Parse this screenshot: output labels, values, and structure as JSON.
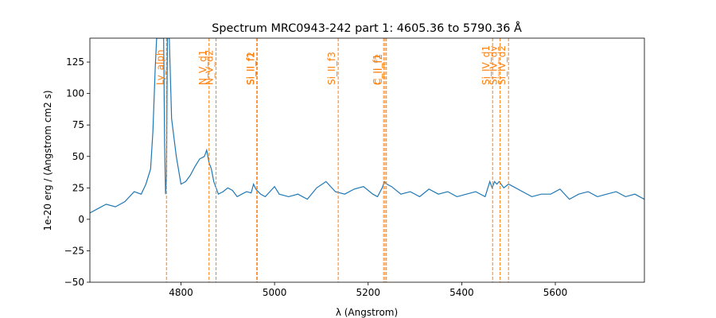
{
  "chart_data": {
    "type": "line",
    "title": "Spectrum MRC0943-242 part 1: 4605.36 to 5790.36 Å",
    "xlabel": "λ (Angstrom)",
    "ylabel": "1e-20 erg / (Angstrom cm2 s)",
    "xlim": [
      4605.36,
      5790.36
    ],
    "ylim": [
      -50,
      144
    ],
    "xticks": [
      4800,
      5000,
      5200,
      5400,
      5600
    ],
    "xtick_labels": [
      "4800",
      "5000",
      "5200",
      "5400",
      "5600"
    ],
    "yticks": [
      -50,
      -25,
      0,
      25,
      50,
      75,
      100,
      125
    ],
    "ytick_labels": [
      "−50",
      "−25",
      "0",
      "25",
      "50",
      "75",
      "100",
      "125"
    ],
    "grid": false,
    "colors": {
      "spectrum": "#1f77b4",
      "lines": "#ff7f0e"
    },
    "series": [
      {
        "x": [
          4605,
          4620,
          4640,
          4660,
          4680,
          4700,
          4715,
          4725,
          4735,
          4740,
          4745,
          4748,
          4751,
          4754,
          4757,
          4760,
          4763,
          4765,
          4767,
          4769,
          4771,
          4775,
          4780,
          4790,
          4800,
          4810,
          4820,
          4830,
          4840,
          4850,
          4855,
          4860,
          4865,
          4870,
          4880,
          4890,
          4900,
          4910,
          4920,
          4930,
          4940,
          4950,
          4955,
          4960,
          4970,
          4980,
          4990,
          5000,
          5010,
          5030,
          5050,
          5070,
          5090,
          5110,
          5130,
          5150,
          5170,
          5190,
          5210,
          5220,
          5230,
          5235,
          5240,
          5250,
          5270,
          5290,
          5310,
          5330,
          5350,
          5370,
          5390,
          5410,
          5430,
          5450,
          5460,
          5465,
          5470,
          5475,
          5480,
          5490,
          5500,
          5510,
          5530,
          5550,
          5570,
          5590,
          5610,
          5630,
          5650,
          5670,
          5690,
          5710,
          5730,
          5750,
          5770,
          5790
        ],
        "y": [
          5,
          8,
          12,
          10,
          14,
          22,
          20,
          28,
          40,
          70,
          120,
          144,
          144,
          144,
          144,
          144,
          144,
          60,
          20,
          35,
          144,
          144,
          80,
          50,
          28,
          30,
          35,
          42,
          48,
          50,
          55,
          45,
          40,
          30,
          20,
          22,
          25,
          23,
          18,
          20,
          22,
          21,
          28,
          24,
          20,
          18,
          22,
          26,
          20,
          18,
          20,
          16,
          25,
          30,
          22,
          20,
          24,
          26,
          20,
          18,
          25,
          30,
          28,
          26,
          20,
          22,
          18,
          24,
          20,
          22,
          18,
          20,
          22,
          18,
          30,
          25,
          30,
          28,
          30,
          25,
          28,
          26,
          22,
          18,
          20,
          20,
          24,
          16,
          20,
          22,
          18,
          20,
          22,
          18,
          20,
          16
        ]
      }
    ],
    "vlines": [
      {
        "x": 4769,
        "label": "Ly_alph"
      },
      {
        "x": 4860,
        "label": "N_V_d1"
      },
      {
        "x": 4875,
        "label": "N_V_d2"
      },
      {
        "x": 4962,
        "label": "Si_II_f1"
      },
      {
        "x": 4963,
        "label": "Si_II_f2"
      },
      {
        "x": 5136,
        "label": "Si_II_f3"
      },
      {
        "x": 5233,
        "label": "C_II_f1"
      },
      {
        "x": 5236,
        "label": "C_II_f2"
      },
      {
        "x": 5239,
        "label": ""
      },
      {
        "x": 5466,
        "label": "Si_IV_d1"
      },
      {
        "x": 5482,
        "label": "Si_IV_dv"
      },
      {
        "x": 5500,
        "label": "Si_IV_d2"
      }
    ]
  }
}
